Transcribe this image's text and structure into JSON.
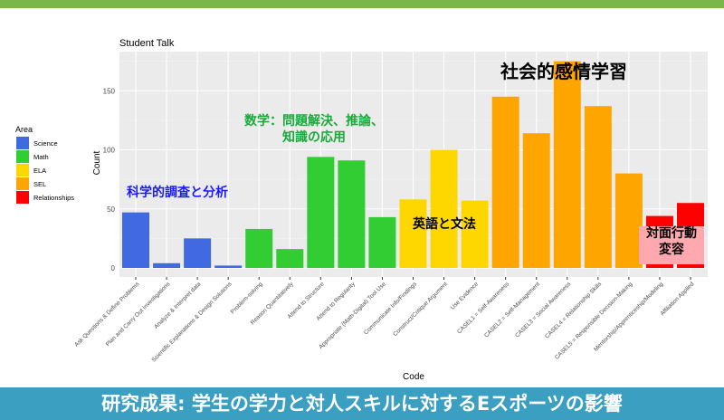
{
  "banner": "研究成果: 学生の学力と対人スキルに対するEスポーツの影響",
  "annotations": {
    "science": "科学的調査と分析",
    "math_line1": "数学：問題解決、推論、",
    "math_line2": "知識の応用",
    "ela": "英語と文法",
    "sel": "社会的感情学習",
    "rel_line1": "対面行動",
    "rel_line2": "変容"
  },
  "colors": {
    "Science": "#4169e1",
    "Math": "#32cd32",
    "ELA": "#ffd700",
    "SEL": "#ffa500",
    "Relationships": "#ff0000",
    "topbar": "#7ab648",
    "banner": "#3a9fc0"
  },
  "chart_data": {
    "type": "bar",
    "title": "Student Talk",
    "xlabel": "Code",
    "ylabel": "Count",
    "ylim": [
      0,
      185
    ],
    "yticks": [
      0,
      50,
      100,
      150
    ],
    "grid": true,
    "legend": {
      "title": "Area",
      "position": "left",
      "entries": [
        "Science",
        "Math",
        "ELA",
        "SEL",
        "Relationships"
      ]
    },
    "categories": [
      "Ask Questions & Define Problems",
      "Plan and Carry Out Investigations",
      "Analyze & Interpret data",
      "Scientific Explanations & Design Solutions",
      "Problem-solving",
      "Reason Quantitatively",
      "Attend to Structure",
      "Attend to Regularity",
      "Appropriate (Math-Digital) Tool Use",
      "Communicate Info/Findings",
      "Construct/Critique Argument",
      "Use Evidence",
      "CASEL1 = Self-Awareness",
      "CASEL2 = Self-Management",
      "CASEL3 = Social Awareness",
      "CASEL4 = Relationship Skills",
      "CASEL5 = Responsible Decision-Making",
      "Mentorship/Apprenticeship/Modeling",
      "Affiliation Applied"
    ],
    "area": [
      "Science",
      "Science",
      "Science",
      "Science",
      "Math",
      "Math",
      "Math",
      "Math",
      "Math",
      "ELA",
      "ELA",
      "ELA",
      "SEL",
      "SEL",
      "SEL",
      "SEL",
      "SEL",
      "Relationships",
      "Relationships"
    ],
    "values": [
      47,
      4,
      25,
      2,
      33,
      16,
      94,
      91,
      43,
      58,
      100,
      57,
      145,
      114,
      175,
      137,
      80,
      44,
      55
    ]
  }
}
